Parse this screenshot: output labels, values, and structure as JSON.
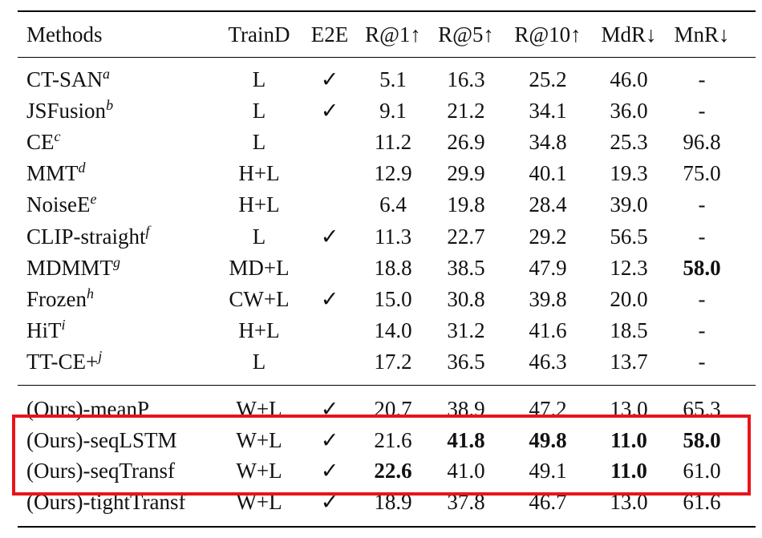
{
  "table": {
    "header": [
      "Methods",
      "TrainD",
      "E2E",
      "R@1↑",
      "R@5↑",
      "R@10↑",
      "MdR↓",
      "MnR↓"
    ],
    "groups": [
      [
        {
          "method": "CT-SAN",
          "sup": "a",
          "cells": [
            "L",
            "✓",
            "5.1",
            "16.3",
            "25.2",
            "46.0",
            "-"
          ]
        },
        {
          "method": "JSFusion",
          "sup": "b",
          "cells": [
            "L",
            "✓",
            "9.1",
            "21.2",
            "34.1",
            "36.0",
            "-"
          ]
        },
        {
          "method": "CE",
          "sup": "c",
          "cells": [
            "L",
            null,
            "11.2",
            "26.9",
            "34.8",
            "25.3",
            "96.8"
          ]
        },
        {
          "method": "MMT",
          "sup": "d",
          "cells": [
            "H+L",
            null,
            "12.9",
            "29.9",
            "40.1",
            "19.3",
            "75.0"
          ]
        },
        {
          "method": "NoiseE",
          "sup": "e",
          "cells": [
            "H+L",
            null,
            "6.4",
            "19.8",
            "28.4",
            "39.0",
            "-"
          ]
        },
        {
          "method": "CLIP-straight",
          "sup": "f",
          "cells": [
            "L",
            "✓",
            "11.3",
            "22.7",
            "29.2",
            "56.5",
            "-"
          ]
        },
        {
          "method": "MDMMT",
          "sup": "g",
          "cells": [
            "MD+L",
            null,
            "18.8",
            "38.5",
            "47.9",
            "12.3",
            "58.0"
          ],
          "bold": [
            6
          ]
        },
        {
          "method": "Frozen",
          "sup": "h",
          "cells": [
            "CW+L",
            "✓",
            "15.0",
            "30.8",
            "39.8",
            "20.0",
            "-"
          ]
        },
        {
          "method": "HiT",
          "sup": "i",
          "cells": [
            "H+L",
            null,
            "14.0",
            "31.2",
            "41.6",
            "18.5",
            "-"
          ]
        },
        {
          "method": "TT-CE+",
          "sup": "j",
          "cells": [
            "L",
            null,
            "17.2",
            "36.5",
            "46.3",
            "13.7",
            "-"
          ]
        }
      ],
      [
        {
          "method": "(Ours)-meanP",
          "cells": [
            "W+L",
            "✓",
            "20.7",
            "38.9",
            "47.2",
            "13.0",
            "65.3"
          ]
        },
        {
          "method": "(Ours)-seqLSTM",
          "cells": [
            "W+L",
            "✓",
            "21.6",
            "41.8",
            "49.8",
            "11.0",
            "58.0"
          ],
          "bold": [
            3,
            4,
            5,
            6
          ]
        },
        {
          "method": "(Ours)-seqTransf",
          "cells": [
            "W+L",
            "✓",
            "22.6",
            "41.0",
            "49.1",
            "11.0",
            "61.0"
          ],
          "bold": [
            2,
            5
          ]
        },
        {
          "method": "(Ours)-tightTransf",
          "cells": [
            "W+L",
            "✓",
            "18.9",
            "37.8",
            "46.7",
            "13.0",
            "61.6"
          ]
        }
      ]
    ]
  }
}
